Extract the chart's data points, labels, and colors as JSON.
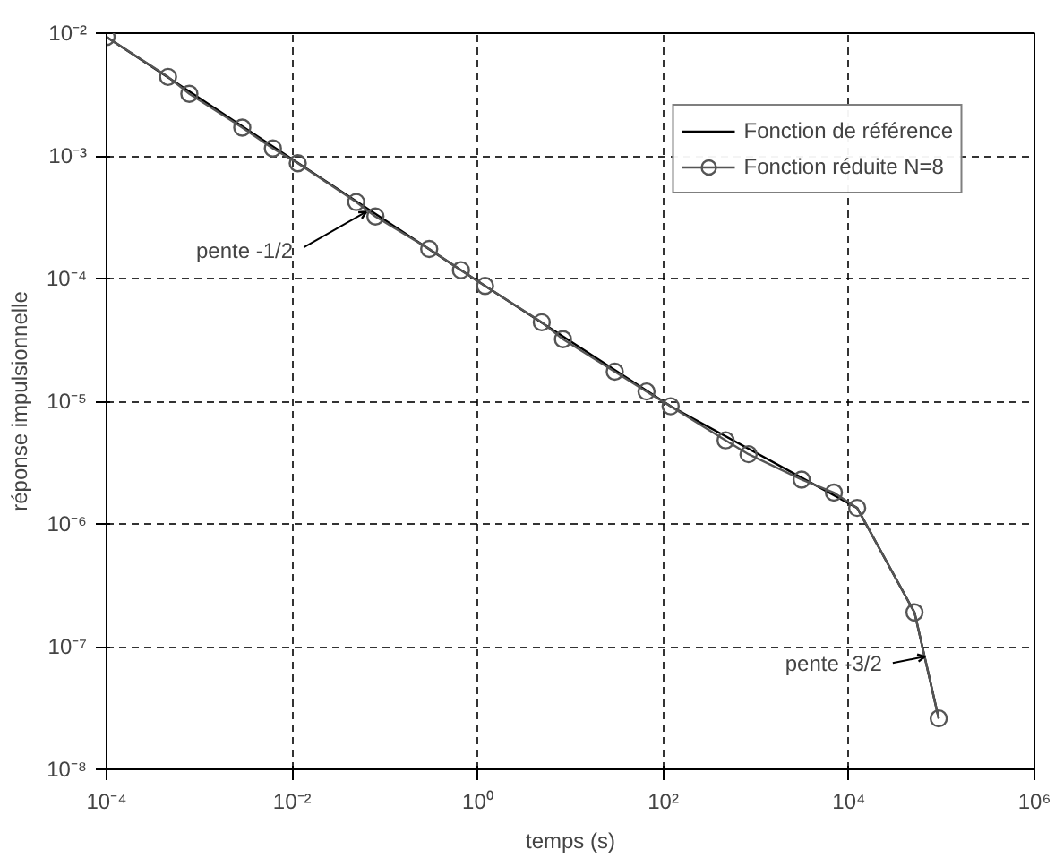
{
  "chart_data": {
    "type": "line",
    "xlabel": "temps (s)",
    "ylabel": "réponse impulsionnelle",
    "x": [
      0.0001,
      0.00046,
      0.00078,
      0.0029,
      0.0062,
      0.0115,
      0.049,
      0.079,
      0.3,
      0.66,
      1.2,
      4.9,
      8.3,
      30,
      66,
      120,
      470,
      830,
      3100,
      6900,
      12300,
      51000,
      93000
    ],
    "series": [
      {
        "name": "Fonction de référence",
        "color": "#000000",
        "marker": "none",
        "x": [
          0.0001,
          1.2,
          120,
          12300,
          51000,
          93000
        ],
        "values": [
          0.0093,
          8.7e-05,
          9.1e-06,
          1.35e-06,
          1.9e-07,
          2.6e-08
        ]
      },
      {
        "name": "Fonction réduite N=8",
        "color": "#555555",
        "marker": "circle",
        "values": [
          0.0093,
          0.0044,
          0.0032,
          0.0017,
          0.00115,
          0.00087,
          0.00042,
          0.00032,
          0.000174,
          0.000117,
          8.7e-05,
          4.4e-05,
          3.2e-05,
          1.74e-05,
          1.2e-05,
          9.1e-06,
          4.8e-06,
          3.7e-06,
          2.3e-06,
          1.8e-06,
          1.35e-06,
          1.9e-07,
          2.6e-08
        ]
      }
    ],
    "log": "xy",
    "xlim": [
      0.0001,
      1000000
    ],
    "ylim": [
      1e-08,
      0.01
    ],
    "xticks": [
      {
        "value": 0.0001,
        "label": "10⁻⁴"
      },
      {
        "value": 0.01,
        "label": "10⁻²"
      },
      {
        "value": 1,
        "label": "10⁰"
      },
      {
        "value": 100,
        "label": "10²"
      },
      {
        "value": 10000,
        "label": "10⁴"
      },
      {
        "value": 1000000,
        "label": "10⁶"
      }
    ],
    "yticks": [
      {
        "value": 1e-08,
        "label": "10⁻⁸"
      },
      {
        "value": 1e-07,
        "label": "10⁻⁷"
      },
      {
        "value": 1e-06,
        "label": "10⁻⁶"
      },
      {
        "value": 1e-05,
        "label": "10⁻⁵"
      },
      {
        "value": 0.0001,
        "label": "10⁻⁴"
      },
      {
        "value": 0.001,
        "label": "10⁻³"
      },
      {
        "value": 0.01,
        "label": "10⁻²"
      }
    ],
    "annotations": [
      {
        "text": "pente -1/2",
        "x": 0.063,
        "y": 0.00035
      },
      {
        "text": "pente -3/2",
        "x": 66000,
        "y": 8.3e-08
      }
    ],
    "grid": true,
    "legend": "top right",
    "line_style": "solid"
  }
}
